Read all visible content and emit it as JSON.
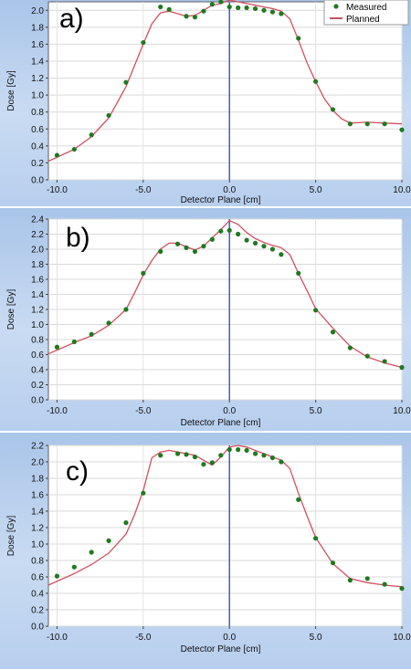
{
  "chart_data": [
    {
      "type": "line",
      "panel_label": "a)",
      "xlabel": "Detector Plane [cm]",
      "ylabel": "Dose [Gy]",
      "xlim": [
        -10.5,
        10.0
      ],
      "ylim": [
        0.0,
        2.1
      ],
      "xticks": [
        -10.0,
        -5.0,
        0.0,
        5.0,
        10.0
      ],
      "xtick_labels": [
        "-10.0",
        "-5.0",
        "0.0",
        "5.0",
        "10.0"
      ],
      "yticks": [
        0.0,
        0.2,
        0.4,
        0.6,
        0.8,
        1.0,
        1.2,
        1.4,
        1.6,
        1.8,
        2.0
      ],
      "ytick_labels": [
        "0.0",
        "0.2",
        "0.4",
        "0.6",
        "0.8",
        "1.0",
        "1.2",
        "1.4",
        "1.6",
        "1.8",
        "2.0"
      ],
      "legend": {
        "position": "top-right",
        "entries": [
          "Measured",
          "Planned"
        ]
      },
      "series": [
        {
          "name": "Measured",
          "kind": "scatter",
          "color": "#1f7a1f",
          "x": [
            -10,
            -9,
            -8,
            -7,
            -6,
            -5,
            -4,
            -3.5,
            -2.5,
            -2,
            -1.5,
            -1,
            -0.5,
            0,
            0.5,
            1,
            1.5,
            2,
            2.5,
            3,
            4,
            5,
            6,
            7,
            8,
            9,
            10
          ],
          "y": [
            0.29,
            0.36,
            0.53,
            0.76,
            1.15,
            1.62,
            2.04,
            2.01,
            1.93,
            1.92,
            1.99,
            2.07,
            2.1,
            2.04,
            2.03,
            2.03,
            2.02,
            2.0,
            1.98,
            1.96,
            1.67,
            1.16,
            0.83,
            0.66,
            0.66,
            0.66,
            0.59
          ]
        },
        {
          "name": "Planned",
          "kind": "line",
          "color": "#d05060",
          "x": [
            -10.5,
            -9,
            -8,
            -7,
            -6,
            -5,
            -4.5,
            -4,
            -3.5,
            -3,
            -2.5,
            -2,
            -1.5,
            -1,
            -0.5,
            0,
            0.5,
            1,
            1.5,
            2,
            2.5,
            3,
            3.5,
            4,
            4.5,
            5,
            5.5,
            6,
            6.5,
            7,
            8,
            9,
            10
          ],
          "y": [
            0.22,
            0.36,
            0.51,
            0.73,
            1.1,
            1.6,
            1.84,
            1.97,
            1.99,
            1.96,
            1.93,
            1.94,
            2.0,
            2.06,
            2.08,
            2.12,
            2.1,
            2.08,
            2.06,
            2.04,
            2.02,
            1.99,
            1.9,
            1.65,
            1.38,
            1.16,
            0.96,
            0.82,
            0.72,
            0.67,
            0.68,
            0.67,
            0.66
          ]
        }
      ]
    },
    {
      "type": "line",
      "panel_label": "b)",
      "xlabel": "Detector Plane [cm]",
      "ylabel": "Dose [Gy]",
      "xlim": [
        -10.5,
        10.0
      ],
      "ylim": [
        0.0,
        2.4
      ],
      "xticks": [
        -10.0,
        -5.0,
        0.0,
        5.0,
        10.0
      ],
      "xtick_labels": [
        "-10.0",
        "-5.0",
        "0.0",
        "5.0",
        "10.0"
      ],
      "yticks": [
        0.0,
        0.2,
        0.4,
        0.6,
        0.8,
        1.0,
        1.2,
        1.4,
        1.6,
        1.8,
        2.0,
        2.2,
        2.4
      ],
      "ytick_labels": [
        "0.0",
        "0.2",
        "0.4",
        "0.6",
        "0.8",
        "1.0",
        "1.2",
        "1.4",
        "1.6",
        "1.8",
        "2.0",
        "2.2",
        "2.4"
      ],
      "series": [
        {
          "name": "Measured",
          "kind": "scatter",
          "color": "#1f7a1f",
          "x": [
            -10,
            -9,
            -8,
            -7,
            -6,
            -5,
            -4,
            -3,
            -2.5,
            -2,
            -1.5,
            -1,
            -0.5,
            0,
            0.5,
            1,
            1.5,
            2,
            2.5,
            3,
            4,
            5,
            6,
            7,
            8,
            9,
            10
          ],
          "y": [
            0.7,
            0.77,
            0.87,
            1.02,
            1.2,
            1.68,
            1.97,
            2.07,
            2.02,
            1.97,
            2.04,
            2.13,
            2.24,
            2.25,
            2.2,
            2.12,
            2.08,
            2.04,
            2.0,
            1.93,
            1.68,
            1.19,
            0.9,
            0.69,
            0.58,
            0.51,
            0.43
          ]
        },
        {
          "name": "Planned",
          "kind": "line",
          "color": "#d05060",
          "x": [
            -10.5,
            -9,
            -8,
            -7,
            -6,
            -5.5,
            -5,
            -4.5,
            -4,
            -3.5,
            -3,
            -2.5,
            -2,
            -1.5,
            -1,
            -0.5,
            0,
            0.5,
            1,
            1.5,
            2,
            2.5,
            3,
            3.5,
            4,
            4.5,
            5,
            6,
            7,
            8,
            9,
            10
          ],
          "y": [
            0.61,
            0.76,
            0.85,
            0.99,
            1.2,
            1.42,
            1.66,
            1.85,
            2.0,
            2.08,
            2.08,
            2.03,
            1.99,
            2.04,
            2.15,
            2.26,
            2.38,
            2.33,
            2.22,
            2.14,
            2.09,
            2.05,
            2.02,
            1.93,
            1.68,
            1.45,
            1.21,
            0.95,
            0.71,
            0.57,
            0.49,
            0.43
          ]
        }
      ]
    },
    {
      "type": "line",
      "panel_label": "c)",
      "xlabel": "Detector Plane [cm]",
      "ylabel": "Dose [Gy]",
      "xlim": [
        -10.5,
        10.0
      ],
      "ylim": [
        0.0,
        2.2
      ],
      "xticks": [
        -10.0,
        -5.0,
        0.0,
        5.0,
        10.0
      ],
      "xtick_labels": [
        "-10.0",
        "-5.0",
        "0.0",
        "5.0",
        "10.0"
      ],
      "yticks": [
        0.0,
        0.2,
        0.4,
        0.6,
        0.8,
        1.0,
        1.2,
        1.4,
        1.6,
        1.8,
        2.0,
        2.2
      ],
      "ytick_labels": [
        "0.0",
        "0.2",
        "0.4",
        "0.6",
        "0.8",
        "1.0",
        "1.2",
        "1.4",
        "1.6",
        "1.8",
        "2.0",
        "2.2"
      ],
      "series": [
        {
          "name": "Measured",
          "kind": "scatter",
          "color": "#1f7a1f",
          "x": [
            -10,
            -9,
            -8,
            -7,
            -6,
            -5,
            -4,
            -3,
            -2.5,
            -2,
            -1.5,
            -1,
            -0.5,
            0,
            0.5,
            1,
            1.5,
            2,
            2.5,
            3,
            4,
            5,
            6,
            7,
            8,
            9,
            10
          ],
          "y": [
            0.61,
            0.72,
            0.9,
            1.04,
            1.26,
            1.62,
            2.08,
            2.1,
            2.09,
            2.06,
            1.97,
            1.99,
            2.08,
            2.15,
            2.15,
            2.14,
            2.1,
            2.08,
            2.05,
            2.0,
            1.54,
            1.07,
            0.77,
            0.56,
            0.58,
            0.51,
            0.46
          ]
        },
        {
          "name": "Planned",
          "kind": "line",
          "color": "#d05060",
          "x": [
            -10.5,
            -9,
            -8,
            -7,
            -6,
            -5.5,
            -5,
            -4.5,
            -4,
            -3.5,
            -3,
            -2.5,
            -2,
            -1.5,
            -1,
            -0.5,
            0,
            0.5,
            1,
            1.5,
            2,
            2.5,
            3,
            3.5,
            4,
            4.5,
            5,
            6,
            7,
            8,
            9,
            10
          ],
          "y": [
            0.5,
            0.64,
            0.75,
            0.89,
            1.12,
            1.36,
            1.65,
            2.05,
            2.12,
            2.14,
            2.12,
            2.1,
            2.08,
            2.02,
            1.96,
            2.06,
            2.18,
            2.2,
            2.18,
            2.14,
            2.1,
            2.06,
            2.02,
            1.92,
            1.62,
            1.34,
            1.08,
            0.76,
            0.58,
            0.53,
            0.5,
            0.48
          ]
        }
      ]
    }
  ]
}
